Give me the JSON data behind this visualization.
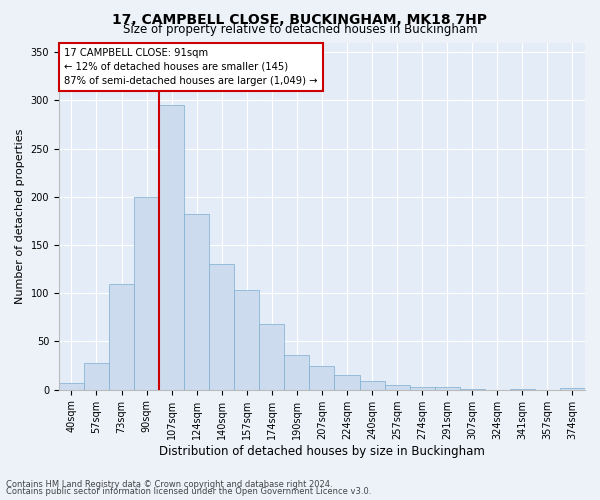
{
  "title1": "17, CAMPBELL CLOSE, BUCKINGHAM, MK18 7HP",
  "title2": "Size of property relative to detached houses in Buckingham",
  "xlabel": "Distribution of detached houses by size in Buckingham",
  "ylabel": "Number of detached properties",
  "categories": [
    "40sqm",
    "57sqm",
    "73sqm",
    "90sqm",
    "107sqm",
    "124sqm",
    "140sqm",
    "157sqm",
    "174sqm",
    "190sqm",
    "207sqm",
    "224sqm",
    "240sqm",
    "257sqm",
    "274sqm",
    "291sqm",
    "307sqm",
    "324sqm",
    "341sqm",
    "357sqm",
    "374sqm"
  ],
  "values": [
    7,
    28,
    110,
    200,
    295,
    182,
    130,
    103,
    68,
    36,
    25,
    15,
    9,
    5,
    3,
    3,
    1,
    0,
    1,
    0,
    2
  ],
  "bar_color": "#ccdcee",
  "bar_edge_color": "#7badd0",
  "annotation_line1": "17 CAMPBELL CLOSE: 91sqm",
  "annotation_line2": "← 12% of detached houses are smaller (145)",
  "annotation_line3": "87% of semi-detached houses are larger (1,049) →",
  "annotation_box_color": "#ffffff",
  "annotation_box_edge": "#cc0000",
  "red_line_color": "#cc0000",
  "red_line_x": 3.5,
  "ylim": [
    0,
    360
  ],
  "yticks": [
    0,
    50,
    100,
    150,
    200,
    250,
    300,
    350
  ],
  "footer1": "Contains HM Land Registry data © Crown copyright and database right 2024.",
  "footer2": "Contains public sector information licensed under the Open Government Licence v3.0.",
  "bg_color": "#edf2f9",
  "plot_bg_color": "#e4ecf7",
  "grid_color": "#ffffff",
  "title1_fontsize": 10,
  "title2_fontsize": 8.5,
  "xlabel_fontsize": 8.5,
  "ylabel_fontsize": 8,
  "tick_fontsize": 7,
  "footer_fontsize": 6
}
